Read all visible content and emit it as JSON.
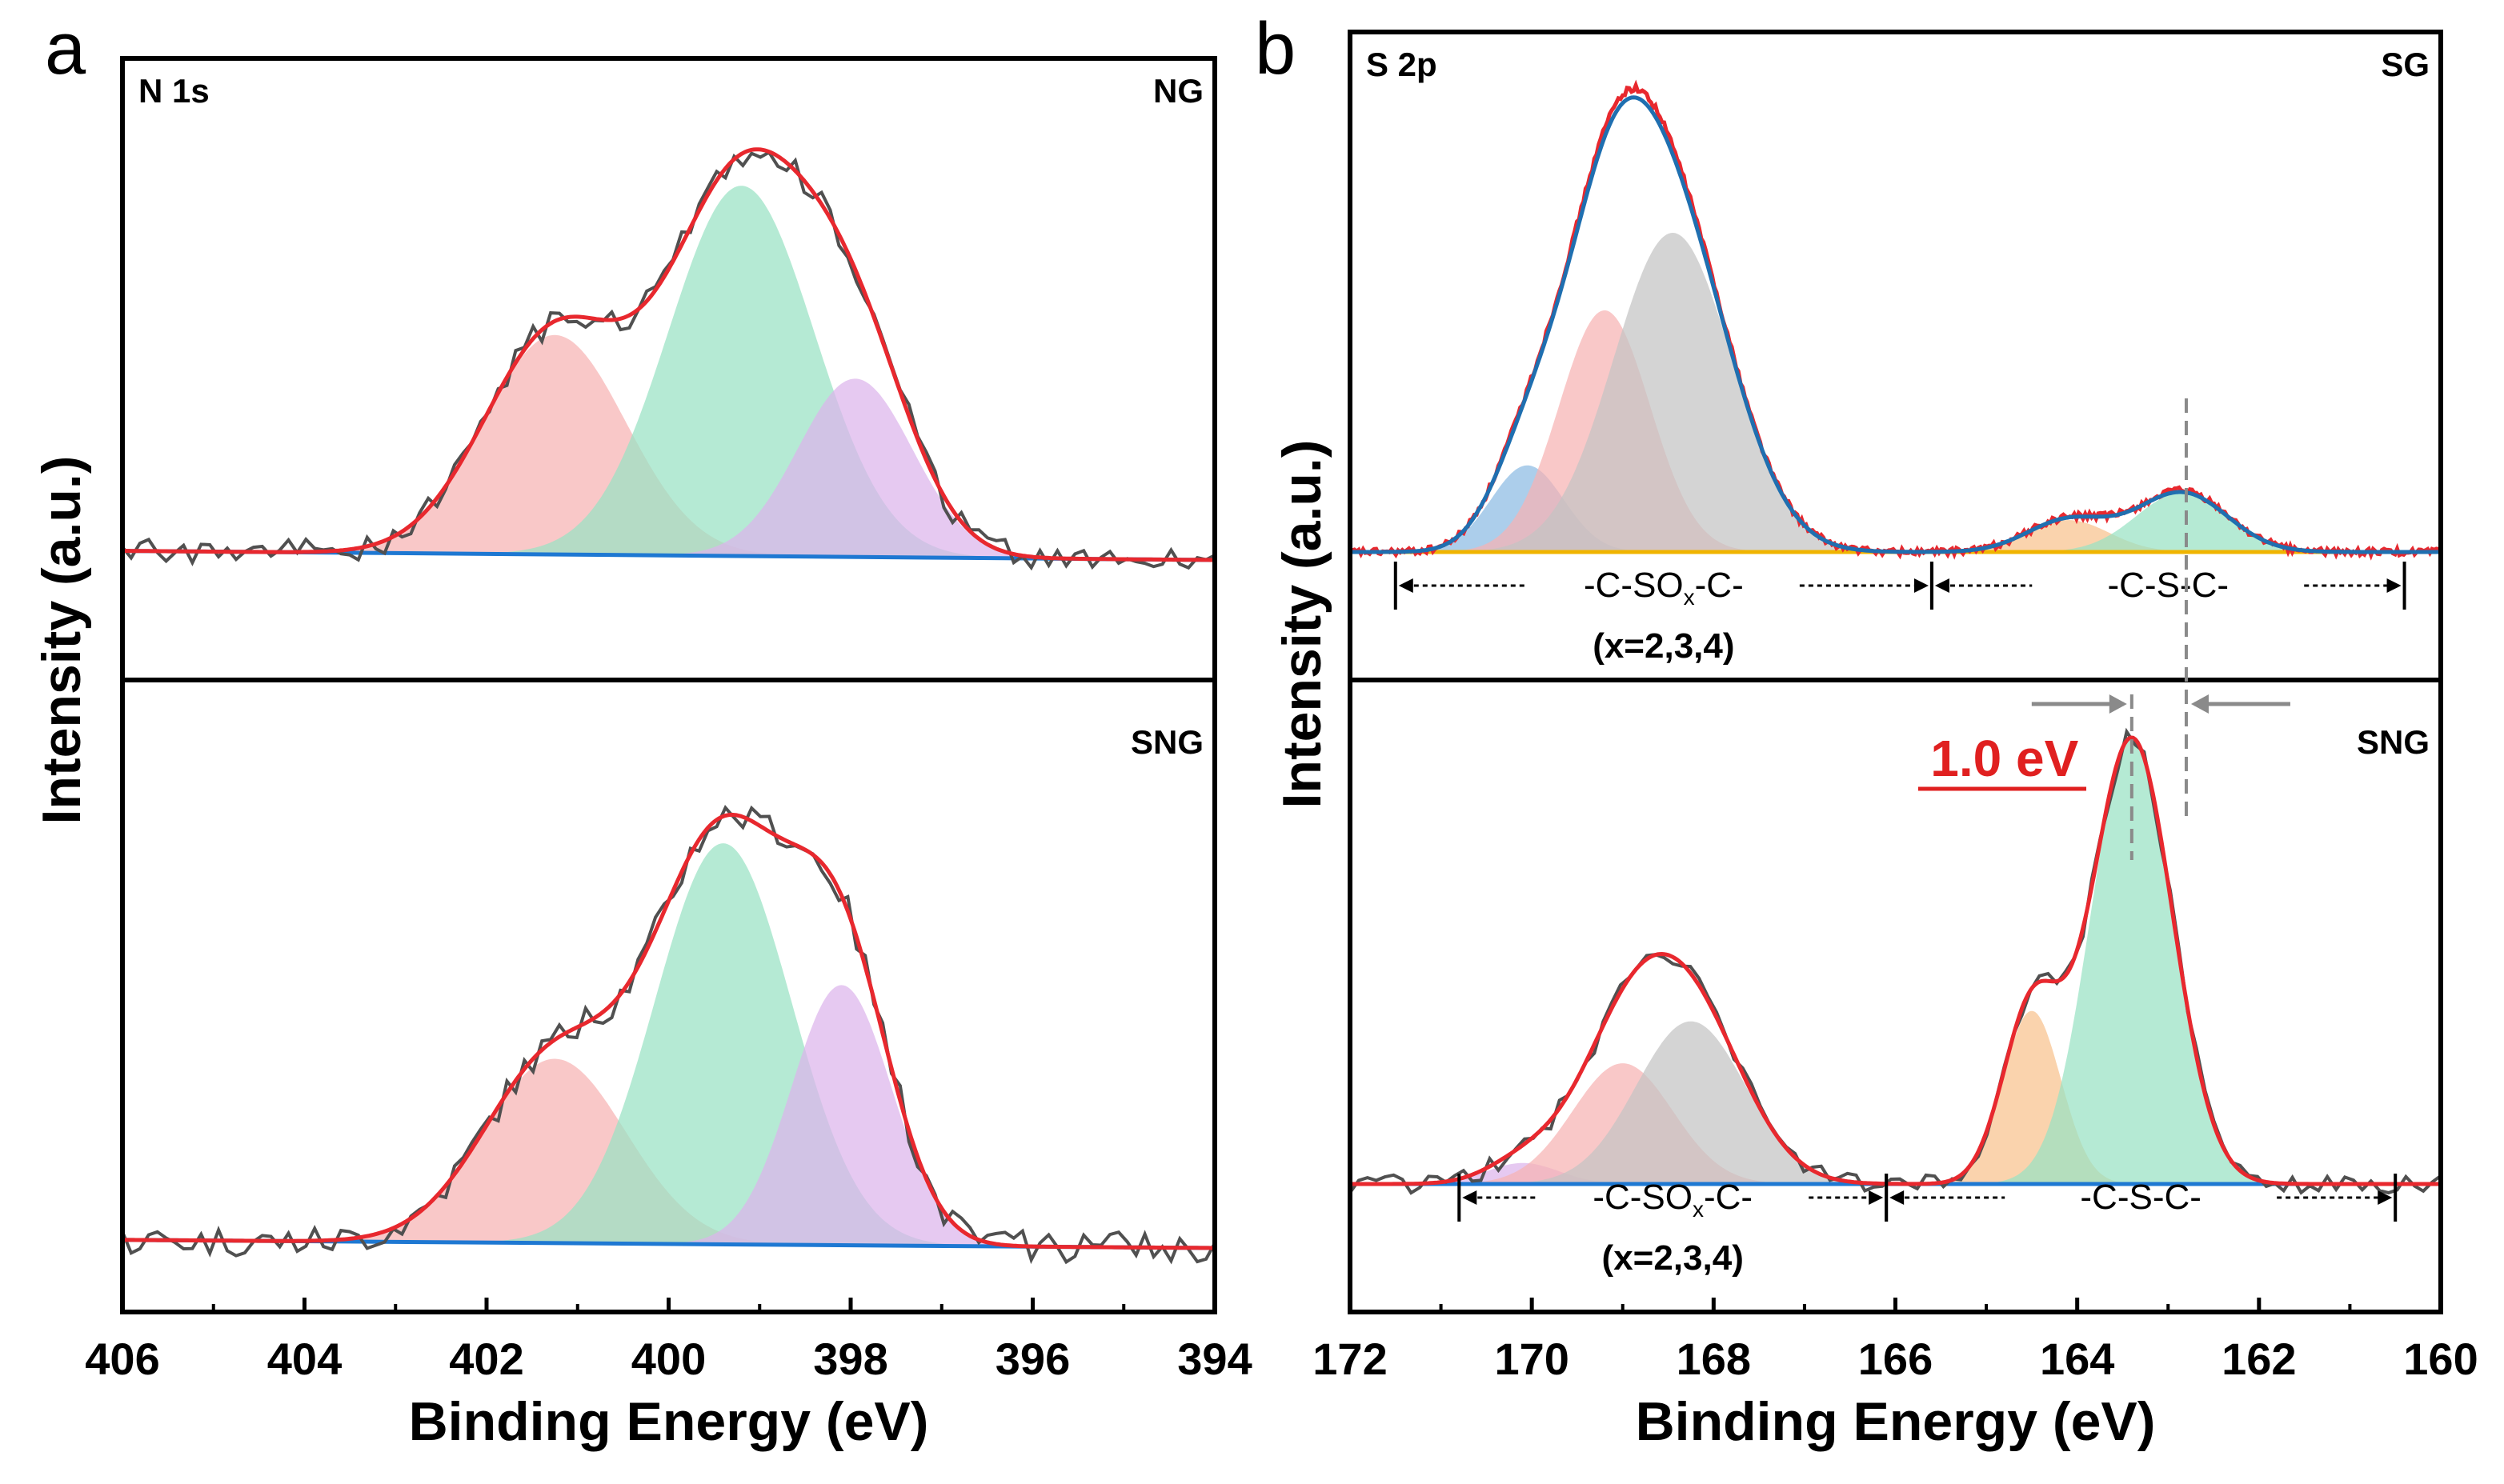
{
  "colors": {
    "raw": "#505050",
    "envelope_red": "#e8282e",
    "envelope_blue": "#1f6fb0",
    "baseline": "#1e78d2",
    "baseline_sg": "#f0b400",
    "pink": "#f7b3b3",
    "green": "#98e2c3",
    "purple": "#dcb4ec",
    "gray": "#c3c3c3",
    "blue_peak": "#8cbbe3",
    "orange": "#f8c28e",
    "annotation_red": "#e02020"
  },
  "chart_data": [
    {
      "type": "line",
      "panel_letter": "a",
      "xlabel": "Binding Energy (eV)",
      "ylabel": "Intensity (a.u.)",
      "xlim": [
        406,
        394
      ],
      "xticks": [
        "406",
        "404",
        "402",
        "400",
        "398",
        "396",
        "394"
      ],
      "subplots": [
        {
          "corner_label": "N 1s",
          "sample_label": "NG",
          "ylim": [
            0,
            1.05
          ],
          "baseline": [
            0.02,
            0.0
          ],
          "components": [
            {
              "center": 401.25,
              "amp": 0.48,
              "sigma": 0.78,
              "color": "pink"
            },
            {
              "center": 399.2,
              "amp": 0.81,
              "sigma": 0.8,
              "color": "green"
            },
            {
              "center": 397.95,
              "amp": 0.39,
              "sigma": 0.63,
              "color": "purple"
            }
          ],
          "raw_noise": 0.028,
          "series": [
            {
              "name": "raw data",
              "color": "raw"
            },
            {
              "name": "envelope",
              "color": "envelope_red"
            }
          ]
        },
        {
          "corner_label": "",
          "sample_label": "SNG",
          "ylim": [
            0,
            0.93
          ],
          "baseline": [
            0.015,
            0.0
          ],
          "components": [
            {
              "center": 401.25,
              "amp": 0.34,
              "sigma": 0.78,
              "color": "pink"
            },
            {
              "center": 399.4,
              "amp": 0.74,
              "sigma": 0.75,
              "color": "green"
            },
            {
              "center": 398.1,
              "amp": 0.48,
              "sigma": 0.55,
              "color": "purple"
            }
          ],
          "raw_noise": 0.028,
          "series": [
            {
              "name": "raw data",
              "color": "raw"
            },
            {
              "name": "envelope",
              "color": "envelope_red"
            }
          ]
        }
      ]
    },
    {
      "type": "line",
      "panel_letter": "b",
      "xlabel": "Binding Energy (eV)",
      "ylabel": "Intensity (a.u.)",
      "xlim": [
        172,
        160
      ],
      "xticks": [
        "172",
        "170",
        "168",
        "166",
        "164",
        "162",
        "160"
      ],
      "shift_label": "1.0 eV",
      "subplots": [
        {
          "corner_label": "S 2p",
          "sample_label": "SG",
          "ylim": [
            0,
            1.0
          ],
          "baseline": [
            0.0,
            0.0
          ],
          "components": [
            {
              "center": 170.05,
              "amp": 0.19,
              "sigma": 0.4,
              "color": "blue_peak"
            },
            {
              "center": 169.2,
              "amp": 0.53,
              "sigma": 0.5,
              "color": "pink"
            },
            {
              "center": 168.45,
              "amp": 0.7,
              "sigma": 0.65,
              "color": "gray"
            },
            {
              "center": 164.1,
              "amp": 0.07,
              "sigma": 0.45,
              "color": "orange"
            },
            {
              "center": 162.85,
              "amp": 0.13,
              "sigma": 0.5,
              "color": "green"
            }
          ],
          "raw_noise": 0.012,
          "series": [
            {
              "name": "SG envelope",
              "color": "envelope_red"
            },
            {
              "name": "SG fit",
              "color": "envelope_blue"
            }
          ],
          "groups": [
            {
              "label": "-C-SO",
              "sub": "x",
              "suffix": "-C-",
              "note": "(x=2,3,4)",
              "from": 171.5,
              "to": 165.6
            },
            {
              "label": "-C-S-C-",
              "sub": "",
              "suffix": "",
              "note": "",
              "from": 165.6,
              "to": 160.4
            }
          ]
        },
        {
          "corner_label": "",
          "sample_label": "SNG",
          "ylim": [
            0,
            0.93
          ],
          "baseline": [
            0.0,
            0.0
          ],
          "components": [
            {
              "center": 170.1,
              "amp": 0.04,
              "sigma": 0.4,
              "color": "purple"
            },
            {
              "center": 169.0,
              "amp": 0.23,
              "sigma": 0.55,
              "color": "pink"
            },
            {
              "center": 168.25,
              "amp": 0.31,
              "sigma": 0.6,
              "color": "gray"
            },
            {
              "center": 164.5,
              "amp": 0.33,
              "sigma": 0.32,
              "color": "orange"
            },
            {
              "center": 163.4,
              "amp": 0.85,
              "sigma": 0.45,
              "color": "green"
            }
          ],
          "raw_noise": 0.018,
          "series": [
            {
              "name": "raw data",
              "color": "raw"
            },
            {
              "name": "envelope",
              "color": "envelope_red"
            }
          ],
          "groups": [
            {
              "label": "-C-SO",
              "sub": "x",
              "suffix": "-C-",
              "note": "(x=2,3,4)",
              "from": 170.8,
              "to": 166.1
            },
            {
              "label": "-C-S-C-",
              "sub": "",
              "suffix": "",
              "note": "",
              "from": 166.1,
              "to": 160.5
            }
          ]
        }
      ]
    }
  ]
}
